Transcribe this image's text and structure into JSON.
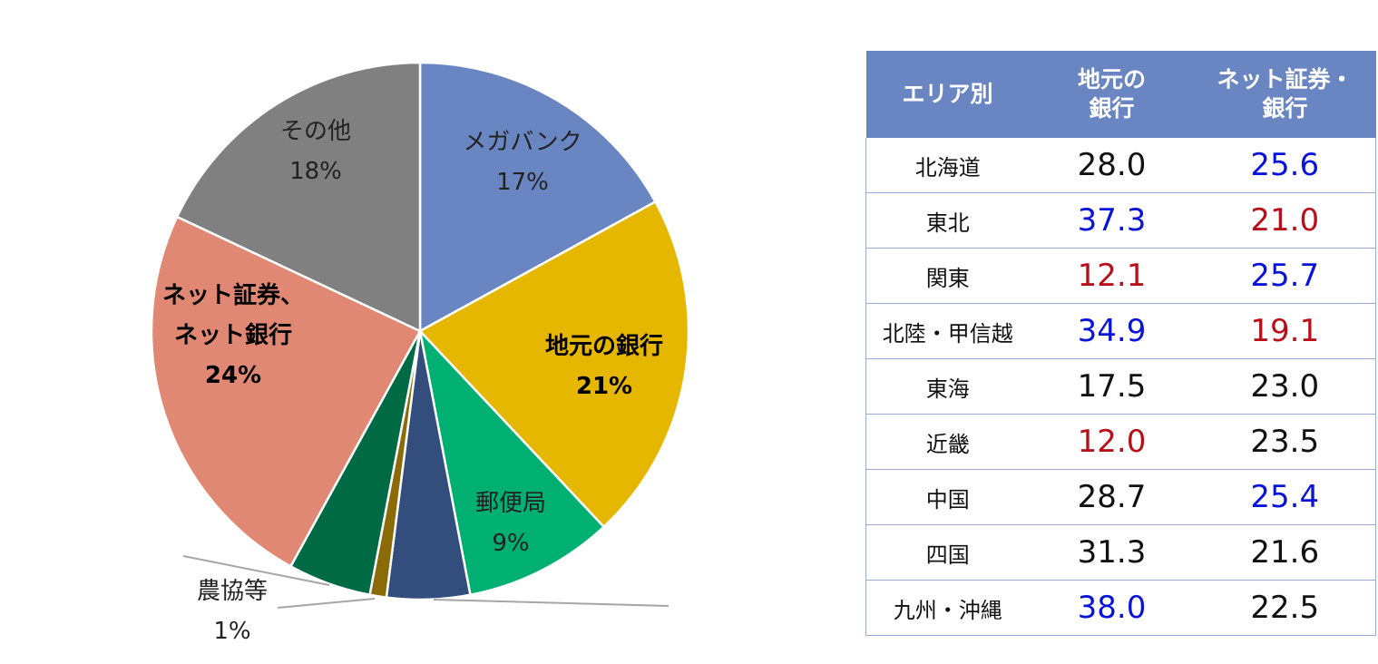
{
  "colors": {
    "blue_value": "#0a14d8",
    "red_value": "#b8101a",
    "black_value": "#111111",
    "header_bg": "#6a86c2"
  },
  "chart_data": {
    "type": "pie",
    "slices": [
      {
        "label": "メガバンク",
        "value": 17,
        "display": "17%",
        "color": "#6a86c2",
        "bold": false
      },
      {
        "label": "地元の銀行",
        "value": 21,
        "display": "21%",
        "color": "#e6b700",
        "bold": true
      },
      {
        "label": "郵便局",
        "value": 9,
        "display": "9%",
        "color": "#00b073",
        "bold": false
      },
      {
        "label": "",
        "value": 5,
        "display": "",
        "color": "#334d7c",
        "bold": false
      },
      {
        "label": "農協等",
        "value": 1,
        "display": "1%",
        "color": "#8a6b07",
        "bold": false
      },
      {
        "label": "",
        "value": 5,
        "display": "",
        "color": "#006a45",
        "bold": false
      },
      {
        "label": "ネット証券、\nネット銀行",
        "value": 24,
        "display": "24%",
        "color": "#e08873",
        "bold": true
      },
      {
        "label": "その他",
        "value": 18,
        "display": "18%",
        "color": "#808080",
        "bold": false
      }
    ]
  },
  "table": {
    "headers": [
      "エリア別",
      "地元の\n銀行",
      "ネット証券・\n銀行"
    ],
    "rows": [
      {
        "area": "北海道",
        "local": "28.0",
        "local_color": "black",
        "net": "25.6",
        "net_color": "blue"
      },
      {
        "area": "東北",
        "local": "37.3",
        "local_color": "blue",
        "net": "21.0",
        "net_color": "red"
      },
      {
        "area": "関東",
        "local": "12.1",
        "local_color": "red",
        "net": "25.7",
        "net_color": "blue"
      },
      {
        "area": "北陸・甲信越",
        "local": "34.9",
        "local_color": "blue",
        "net": "19.1",
        "net_color": "red"
      },
      {
        "area": "東海",
        "local": "17.5",
        "local_color": "black",
        "net": "23.0",
        "net_color": "black"
      },
      {
        "area": "近畿",
        "local": "12.0",
        "local_color": "red",
        "net": "23.5",
        "net_color": "black"
      },
      {
        "area": "中国",
        "local": "28.7",
        "local_color": "black",
        "net": "25.4",
        "net_color": "blue"
      },
      {
        "area": "四国",
        "local": "31.3",
        "local_color": "black",
        "net": "21.6",
        "net_color": "black"
      },
      {
        "area": "九州・沖縄",
        "local": "38.0",
        "local_color": "blue",
        "net": "22.5",
        "net_color": "black"
      }
    ]
  }
}
